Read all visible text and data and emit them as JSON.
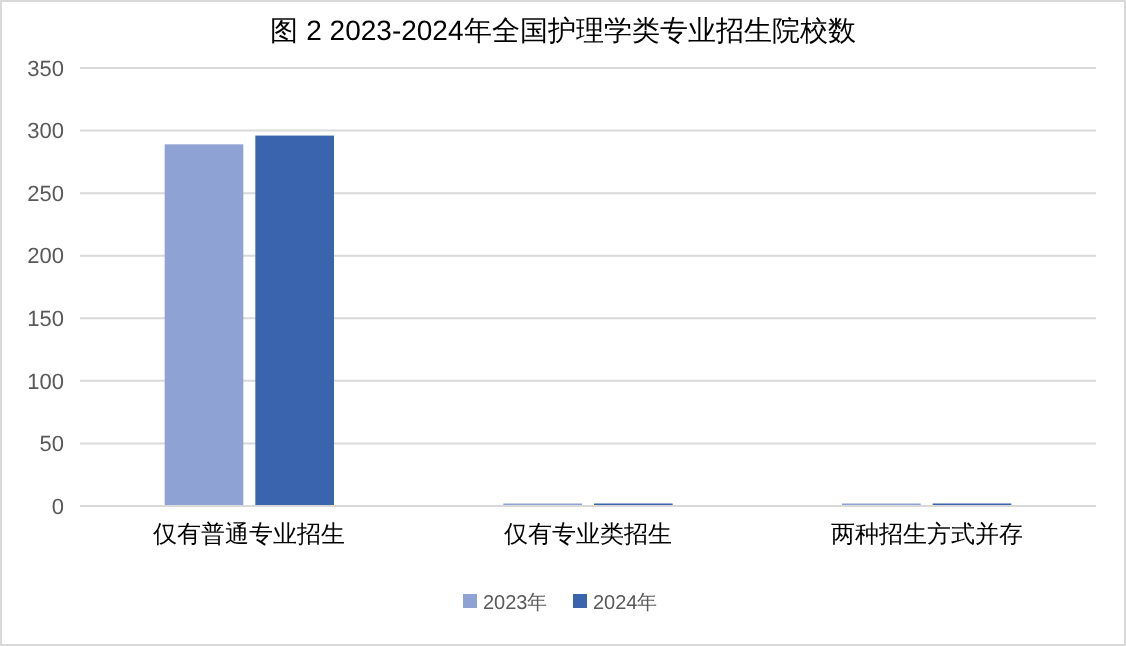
{
  "chart_data": {
    "type": "bar",
    "title": "图 2 2023-2024年全国护理学类专业招生院校数",
    "categories": [
      "仅有普通专业招生",
      "仅有专业类招生",
      "两种招生方式并存"
    ],
    "series": [
      {
        "name": "2023年",
        "color": "#8fa2d4",
        "values": [
          289,
          2,
          2
        ]
      },
      {
        "name": "2024年",
        "color": "#3a64ae",
        "values": [
          296,
          2,
          2
        ]
      }
    ],
    "ylim": [
      0,
      350
    ],
    "yticks": [
      0,
      50,
      100,
      150,
      200,
      250,
      300,
      350
    ],
    "grid": "y",
    "legend": "bottom"
  }
}
